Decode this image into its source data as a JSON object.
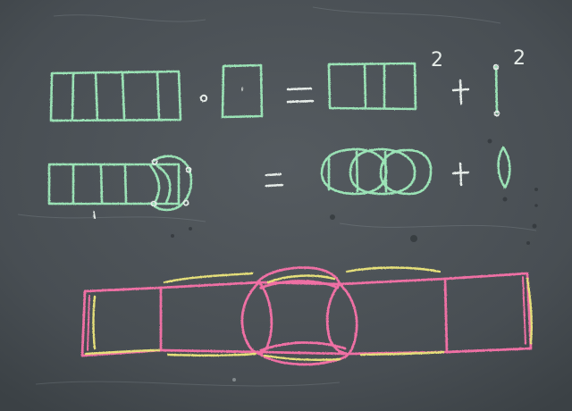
{
  "scene": {
    "subject": "chalkboard",
    "colors": {
      "board": "#4a5055",
      "board_dark": "#3d4347",
      "board_light": "#5a6066",
      "chalk_green": "#9be3b6",
      "chalk_white": "#e6ece8",
      "chalk_pink": "#ef6fa4",
      "chalk_yellow": "#e6e07a"
    },
    "row1": {
      "exponent_1": "2",
      "exponent_2": "2"
    }
  }
}
